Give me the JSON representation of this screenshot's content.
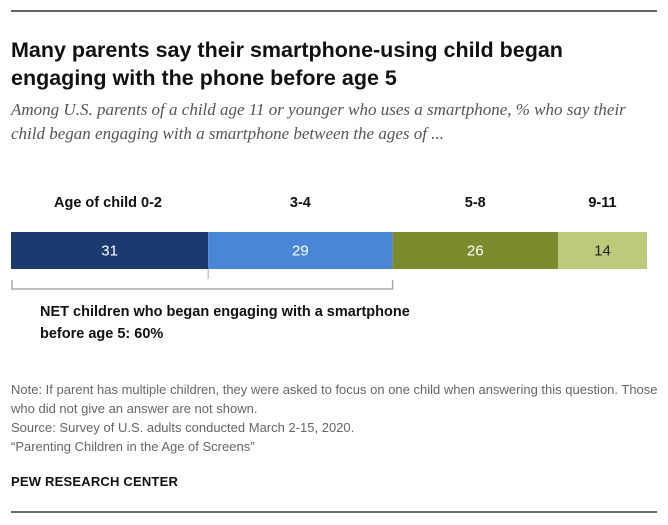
{
  "title": "Many parents say their smartphone-using child began engaging with the phone before age 5",
  "subtitle": "Among U.S. parents of a child age 11 or younger who uses a smartphone, % who say their child began engaging with a smartphone between the ages of ...",
  "chart_data": {
    "type": "bar",
    "orientation": "horizontal-stacked",
    "categories": [
      "Age of child 0-2",
      "3-4",
      "5-8",
      "9-11"
    ],
    "values": [
      31,
      29,
      26,
      14
    ],
    "colors": [
      "#1b3a6f",
      "#4a86d8",
      "#7a8b2b",
      "#bccb7a"
    ],
    "label_colors": [
      "#ffffff",
      "#ffffff",
      "#ffffff",
      "#222222"
    ],
    "bracket_color": "#aaaaaa",
    "net_note": "NET children who began engaging with a smartphone before age 5: 60%"
  },
  "notes": {
    "note": "Note: If parent has multiple children, they were asked to focus on one child when answering this question. Those who did not give an answer are not shown.",
    "source": "Source: Survey of U.S. adults conducted March 2-15, 2020.",
    "report": "“Parenting Children in the Age of Screens”"
  },
  "brand": "PEW RESEARCH CENTER"
}
